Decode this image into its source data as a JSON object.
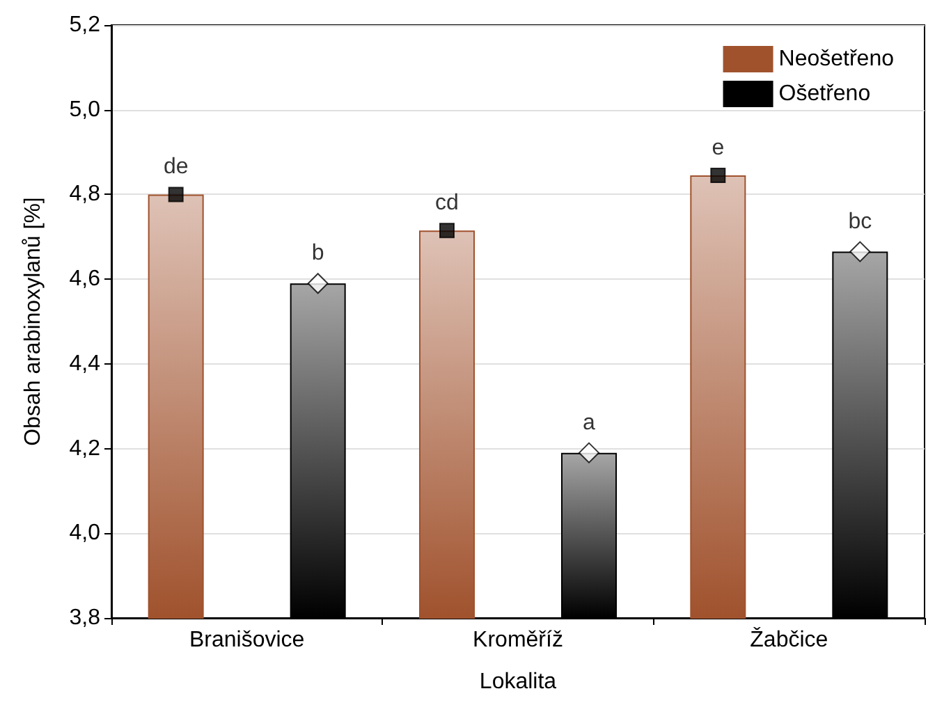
{
  "chart_data": {
    "type": "bar",
    "xlabel": "Lokalita",
    "ylabel": "Obsah arabinoxylanů [%]",
    "categories": [
      "Branišovice",
      "Kroměříž",
      "Žabčice"
    ],
    "series": [
      {
        "name": "Neošetřeno",
        "color": "#a0522d",
        "values": [
          4.8,
          4.715,
          4.845
        ]
      },
      {
        "name": "Ošetřeno",
        "color": "#000000",
        "values": [
          4.59,
          4.19,
          4.665
        ]
      },
      {
        "type": "scatter",
        "color": "#000000",
        "marker": "square",
        "x": [
          "Branišovice",
          "Kroměříž",
          "Žabčice"
        ],
        "values": [
          4.8,
          4.715,
          4.845
        ]
      },
      {
        "type": "scatter",
        "color": "#ffffff",
        "marker": "diamond",
        "x": [
          "Branišovice",
          "Kroměříž",
          "Žabčice"
        ],
        "values": [
          4.59,
          4.19,
          4.665
        ]
      }
    ],
    "ylim": [
      3.8,
      5.2
    ],
    "yticks": [
      {
        "value": 3.8,
        "label": "3,8"
      },
      {
        "value": 4.0,
        "label": "4,0"
      },
      {
        "value": 4.2,
        "label": "4,2"
      },
      {
        "value": 4.4,
        "label": "4,4"
      },
      {
        "value": 4.6,
        "label": "4,6"
      },
      {
        "value": 4.8,
        "label": "4,8"
      },
      {
        "value": 5.0,
        "label": "5,0"
      },
      {
        "value": 5.2,
        "label": "5,2"
      }
    ],
    "annotations": [
      "de",
      "b",
      "cd",
      "a",
      "e",
      "bc"
    ],
    "grid": "y",
    "legend": "top right"
  }
}
